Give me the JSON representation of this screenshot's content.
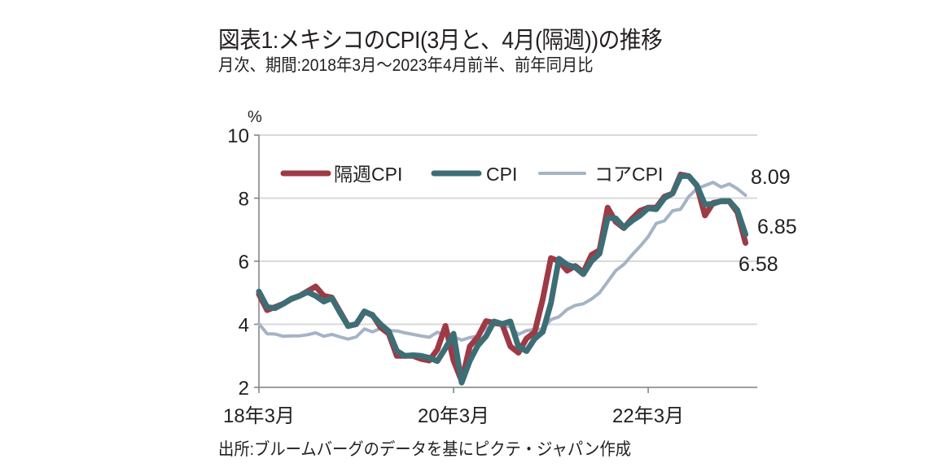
{
  "title": "図表1:メキシコのCPI(3月と、4月(隔週))の推移",
  "subtitle": "月次、期間:2018年3月～2023年4月前半、前年同月比",
  "source": "出所:ブルームバーグのデータを基にピクテ・ジャパン作成",
  "chart_data": {
    "type": "line",
    "title": "図表1:メキシコのCPI(3月と、4月(隔週))の推移",
    "subtitle": "月次、期間:2018年3月～2023年4月前半、前年同月比",
    "xlabel": "",
    "ylabel": "%",
    "ylim": [
      2,
      10
    ],
    "yticks": [
      2,
      4,
      6,
      8,
      10
    ],
    "xticks": [
      {
        "index": 0,
        "label": "18年3月"
      },
      {
        "index": 24,
        "label": "20年3月"
      },
      {
        "index": 48,
        "label": "22年3月"
      }
    ],
    "grid": true,
    "legend_position": "top",
    "x_start": "2018-03",
    "x_end": "2023-04",
    "series": [
      {
        "name": "隔週CPI",
        "color": "#9e3a45",
        "values": [
          4.95,
          4.45,
          4.55,
          4.65,
          4.8,
          4.9,
          5.05,
          5.2,
          4.9,
          4.85,
          4.4,
          3.95,
          4.0,
          4.4,
          4.3,
          3.9,
          3.7,
          3.0,
          3.0,
          3.0,
          2.9,
          2.85,
          3.2,
          3.95,
          2.85,
          2.2,
          3.3,
          3.6,
          4.1,
          4.05,
          4.0,
          3.3,
          3.1,
          3.55,
          3.75,
          4.8,
          6.1,
          6.0,
          5.7,
          5.85,
          5.65,
          6.2,
          6.35,
          7.7,
          7.25,
          7.05,
          7.35,
          7.6,
          7.7,
          7.7,
          8.05,
          8.15,
          8.75,
          8.7,
          8.4,
          7.45,
          7.85,
          7.9,
          7.9,
          7.55,
          6.58
        ]
      },
      {
        "name": "CPI",
        "color": "#3e6e75",
        "values": [
          5.04,
          4.55,
          4.51,
          4.65,
          4.81,
          4.9,
          5.02,
          4.9,
          4.72,
          4.83,
          4.37,
          3.94,
          4.01,
          4.41,
          4.28,
          4.0,
          3.78,
          3.16,
          3.0,
          3.02,
          3.0,
          2.94,
          2.83,
          3.24,
          3.7,
          2.15,
          2.84,
          3.33,
          3.62,
          4.09,
          4.01,
          4.09,
          3.29,
          3.15,
          3.54,
          3.76,
          4.67,
          6.08,
          5.89,
          5.81,
          5.59,
          6.0,
          6.24,
          7.37,
          7.36,
          7.07,
          7.28,
          7.45,
          7.68,
          7.65,
          8.0,
          8.15,
          8.7,
          8.7,
          8.41,
          7.8,
          7.82,
          7.91,
          7.91,
          7.62,
          6.85
        ]
      },
      {
        "name": "コアCPI",
        "color": "#a5b3c6",
        "values": [
          4.02,
          3.7,
          3.69,
          3.62,
          3.63,
          3.63,
          3.67,
          3.73,
          3.62,
          3.68,
          3.6,
          3.53,
          3.6,
          3.85,
          3.76,
          3.87,
          3.8,
          3.79,
          3.73,
          3.68,
          3.63,
          3.59,
          3.75,
          3.65,
          3.6,
          3.5,
          3.58,
          3.63,
          3.9,
          3.98,
          3.99,
          3.91,
          3.68,
          3.8,
          3.84,
          3.85,
          4.15,
          4.24,
          4.47,
          4.6,
          4.65,
          4.8,
          5.0,
          5.35,
          5.7,
          5.9,
          6.2,
          6.47,
          6.78,
          7.2,
          7.28,
          7.6,
          7.65,
          8.05,
          8.3,
          8.4,
          8.5,
          8.35,
          8.45,
          8.3,
          8.09
        ]
      }
    ],
    "annotations": [
      {
        "series": "コアCPI",
        "label": "8.09"
      },
      {
        "series": "CPI",
        "label": "6.85"
      },
      {
        "series": "隔週CPI",
        "label": "6.58"
      }
    ]
  }
}
